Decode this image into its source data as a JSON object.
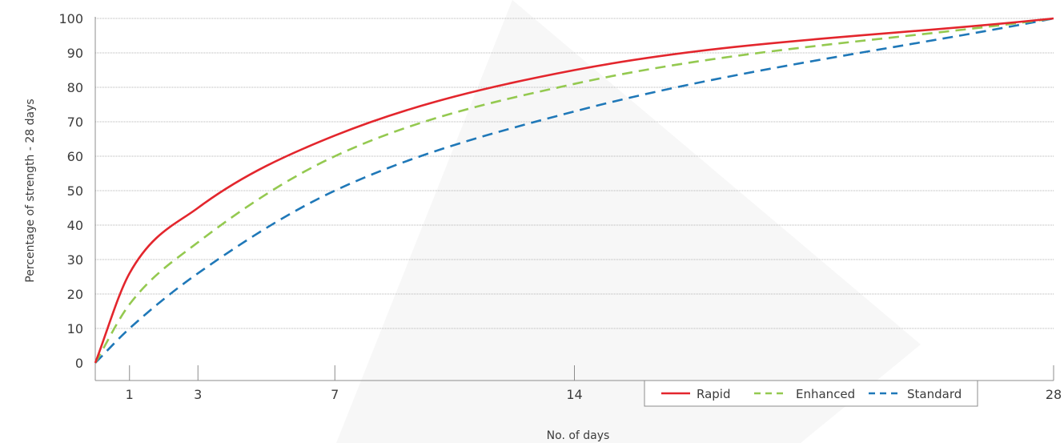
{
  "chart_data": {
    "type": "line",
    "xlabel": "No. of days",
    "ylabel": "Percentage of strength - 28 days",
    "xlim": [
      0,
      28
    ],
    "ylim": [
      0,
      100
    ],
    "x_ticks": [
      1,
      3,
      7,
      14,
      28
    ],
    "y_ticks": [
      0,
      10,
      20,
      30,
      40,
      50,
      60,
      70,
      80,
      90,
      100
    ],
    "grid": "horizontal",
    "legend_position": "bottom-right",
    "series": [
      {
        "name": "Rapid",
        "color": "#e3262d",
        "dash": "solid",
        "x": [
          0,
          1,
          3,
          7,
          14,
          28
        ],
        "y": [
          0,
          26,
          45,
          66,
          85,
          100
        ]
      },
      {
        "name": "Enhanced",
        "color": "#94c950",
        "dash": "dashed",
        "x": [
          0,
          1,
          3,
          7,
          14,
          28
        ],
        "y": [
          0,
          17,
          35,
          60,
          81,
          100
        ]
      },
      {
        "name": "Standard",
        "color": "#1f78b8",
        "dash": "dashed",
        "x": [
          0,
          1,
          3,
          7,
          14,
          28
        ],
        "y": [
          0,
          10,
          26,
          50,
          73,
          100
        ]
      }
    ]
  }
}
